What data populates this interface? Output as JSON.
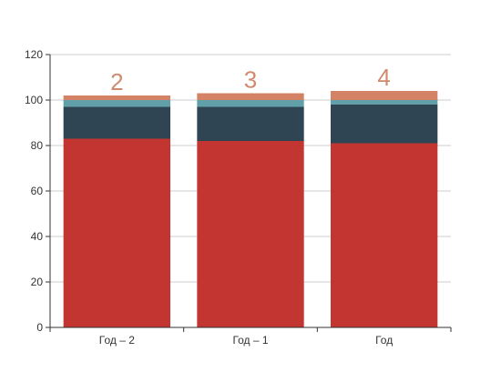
{
  "chart_data": {
    "type": "bar",
    "stacked": true,
    "categories": [
      "Год – 2",
      "Год – 1",
      "Год"
    ],
    "series": [
      {
        "values": [
          83,
          82,
          81
        ],
        "color": "#c23531"
      },
      {
        "values": [
          14,
          15,
          17
        ],
        "color": "#2f4554"
      },
      {
        "values": [
          3,
          3,
          2
        ],
        "color": "#61a0a8"
      },
      {
        "values": [
          2,
          3,
          4
        ],
        "color": "#d48265"
      }
    ],
    "top_labels": [
      "2",
      "3",
      "4"
    ],
    "ylim": [
      0,
      120
    ],
    "yticks": [
      0,
      20,
      40,
      60,
      80,
      100,
      120
    ],
    "grid": true,
    "legend": "none",
    "colors": {
      "axis": "#333333",
      "grid": "#cccccc",
      "label": "#d08a6e"
    }
  }
}
